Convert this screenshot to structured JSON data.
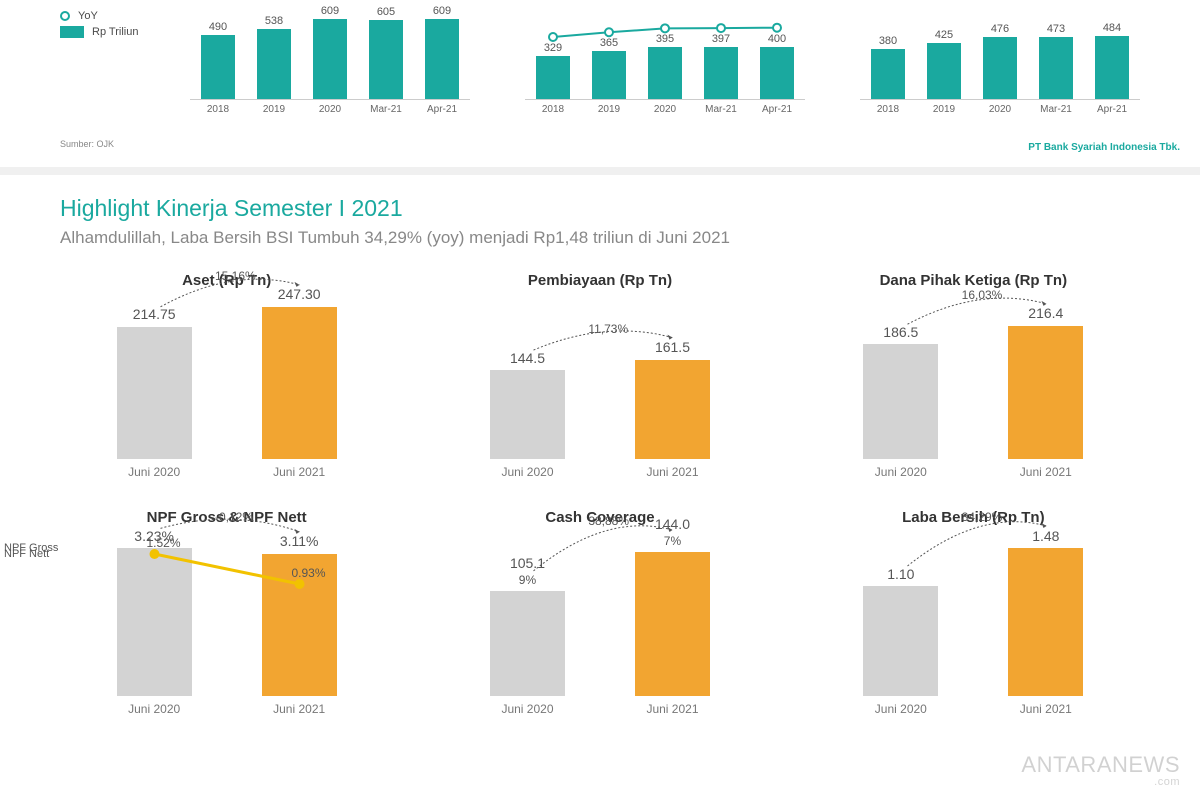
{
  "colors": {
    "teal": "#1aa99f",
    "orange": "#f2a531",
    "gray_bar": "#d3d3d3",
    "text_gray": "#888888",
    "axis": "#cccccc"
  },
  "legend": {
    "yoy": "YoY",
    "bar": "Rp Triliun"
  },
  "source_label": "Sumber: OJK",
  "brand_label": "PT Bank Syariah Indonesia Tbk.",
  "top_charts": {
    "labels": [
      "2018",
      "2019",
      "2020",
      "Mar-21",
      "Apr-21"
    ],
    "max_scale": 650,
    "series": [
      {
        "values": [
          490,
          538,
          609,
          605,
          609
        ],
        "show_line": false
      },
      {
        "values": [
          329,
          365,
          395,
          397,
          400
        ],
        "show_line": true
      },
      {
        "values": [
          380,
          425,
          476,
          473,
          484
        ],
        "show_line": false
      }
    ]
  },
  "main_title": "Highlight Kinerja Semester I 2021",
  "subtitle": "Alhamdulillah, Laba Bersih BSI Tumbuh 34,29% (yoy) menjadi Rp1,48 triliun di Juni 2021",
  "panel_scale_max": 260,
  "panels_row1": [
    {
      "title": "Aset (Rp Tn)",
      "growth": "15,16%",
      "left": {
        "label": "Juni 2020",
        "value": "214.75",
        "num": 214.75,
        "color": "#d3d3d3"
      },
      "right": {
        "label": "Juni 2021",
        "value": "247.30",
        "num": 247.3,
        "color": "#f2a531"
      }
    },
    {
      "title": "Pembiayaan (Rp Tn)",
      "growth": "11,73%",
      "left": {
        "label": "Juni 2020",
        "value": "144.5",
        "num": 144.5,
        "color": "#d3d3d3"
      },
      "right": {
        "label": "Juni 2021",
        "value": "161.5",
        "num": 161.5,
        "color": "#f2a531"
      }
    },
    {
      "title": "Dana Pihak Ketiga (Rp Tn)",
      "growth": "16,03%",
      "left": {
        "label": "Juni 2020",
        "value": "186.5",
        "num": 186.5,
        "color": "#d3d3d3"
      },
      "right": {
        "label": "Juni 2021",
        "value": "216.4",
        "num": 216.4,
        "color": "#f2a531"
      }
    }
  ],
  "panels_row2": [
    {
      "title": "NPF Gross & NPF Nett",
      "growth": "-0,12%",
      "left": {
        "label": "Juni 2020",
        "value": "3.23%",
        "num": 3.23,
        "color": "#d3d3d3"
      },
      "right": {
        "label": "Juni 2021",
        "value": "3.11%",
        "num": 3.11,
        "color": "#f2a531"
      },
      "scale_max": 3.5,
      "npf": {
        "nett_label": "NPF Nett",
        "gross_label": "NPF Gross",
        "nett_left": "1.52%",
        "nett_right": "0.93%"
      }
    },
    {
      "title": "Cash Coverage",
      "growth": "38,88%",
      "left": {
        "label": "Juni 2020",
        "value": "105.1",
        "sub": "9%",
        "num": 105.1,
        "color": "#d3d3d3"
      },
      "right": {
        "label": "Juni 2021",
        "value": "144.0",
        "sub": "7%",
        "num": 144.0,
        "color": "#f2a531"
      },
      "scale_max": 160
    },
    {
      "title": "Laba Bersih (Rp Tn)",
      "growth": "34,29%",
      "left": {
        "label": "Juni 2020",
        "value": "1.10",
        "num": 1.1,
        "color": "#d3d3d3"
      },
      "right": {
        "label": "Juni 2021",
        "value": "1.48",
        "num": 1.48,
        "color": "#f2a531"
      },
      "scale_max": 1.6
    }
  ],
  "watermark": {
    "main": "ANTARANEWS",
    "sub": ".com"
  }
}
